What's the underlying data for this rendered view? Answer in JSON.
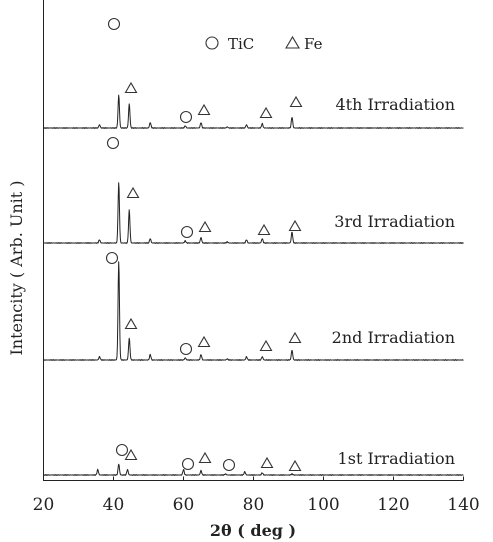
{
  "chart_data": {
    "type": "line",
    "xlabel": "2θ ( deg )",
    "ylabel": "Intencity ( Arb. Unit )",
    "xlim": [
      20,
      140
    ],
    "xticks": [
      20,
      40,
      60,
      80,
      100,
      120,
      140
    ],
    "legend": [
      {
        "symbol": "circle",
        "label": "TiC"
      },
      {
        "symbol": "triangle",
        "label": "Fe"
      }
    ],
    "legend_position": "top-right",
    "series": [
      {
        "name": "4th Irradiation",
        "peaks": [
          {
            "x": 36.0,
            "h": 0.03
          },
          {
            "x": 41.5,
            "h": 0.3
          },
          {
            "x": 44.5,
            "h": 0.22
          },
          {
            "x": 50.5,
            "h": 0.05
          },
          {
            "x": 60.5,
            "h": 0.02
          },
          {
            "x": 65.0,
            "h": 0.05
          },
          {
            "x": 72.5,
            "h": 0.01
          },
          {
            "x": 78.0,
            "h": 0.03
          },
          {
            "x": 82.5,
            "h": 0.04
          },
          {
            "x": 91.0,
            "h": 0.1
          }
        ],
        "tic_markers": [
          40,
          61
        ],
        "fe_markers": [
          44.5,
          65,
          83.5,
          91.5
        ]
      },
      {
        "name": "3rd Irradiation",
        "peaks": [
          {
            "x": 36.0,
            "h": 0.03
          },
          {
            "x": 41.5,
            "h": 0.55
          },
          {
            "x": 44.5,
            "h": 0.3
          },
          {
            "x": 50.5,
            "h": 0.04
          },
          {
            "x": 60.5,
            "h": 0.02
          },
          {
            "x": 65.0,
            "h": 0.05
          },
          {
            "x": 72.5,
            "h": 0.01
          },
          {
            "x": 78.0,
            "h": 0.03
          },
          {
            "x": 82.5,
            "h": 0.04
          },
          {
            "x": 91.0,
            "h": 0.1
          }
        ],
        "tic_markers": [
          39.5,
          61
        ],
        "fe_markers": [
          45,
          65,
          82.5,
          91.5
        ]
      },
      {
        "name": "2nd Irradiation",
        "peaks": [
          {
            "x": 36.0,
            "h": 0.03
          },
          {
            "x": 41.5,
            "h": 0.9
          },
          {
            "x": 44.5,
            "h": 0.2
          },
          {
            "x": 50.5,
            "h": 0.05
          },
          {
            "x": 60.5,
            "h": 0.02
          },
          {
            "x": 65.0,
            "h": 0.05
          },
          {
            "x": 72.5,
            "h": 0.01
          },
          {
            "x": 78.0,
            "h": 0.03
          },
          {
            "x": 82.5,
            "h": 0.03
          },
          {
            "x": 91.0,
            "h": 0.09
          }
        ],
        "tic_markers": [
          39,
          60
        ],
        "fe_markers": [
          44,
          65,
          83.5,
          91.5
        ]
      },
      {
        "name": "1st Irradiation",
        "peaks": [
          {
            "x": 35.5,
            "h": 0.05
          },
          {
            "x": 41.5,
            "h": 0.1
          },
          {
            "x": 44.0,
            "h": 0.05
          },
          {
            "x": 60.0,
            "h": 0.05
          },
          {
            "x": 65.0,
            "h": 0.04
          },
          {
            "x": 72.0,
            "h": 0.01
          },
          {
            "x": 77.5,
            "h": 0.03
          },
          {
            "x": 82.5,
            "h": 0.02
          },
          {
            "x": 91.0,
            "h": 0.01
          }
        ],
        "tic_markers": [
          41.5,
          61,
          72.5
        ],
        "fe_markers": [
          44,
          65.5,
          83.5,
          91.5
        ]
      }
    ]
  }
}
